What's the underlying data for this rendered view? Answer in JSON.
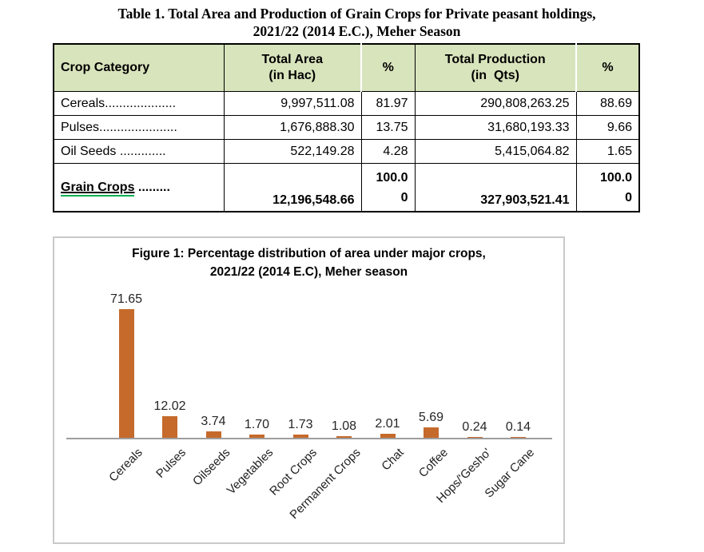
{
  "page": {
    "title_line1": "Table 1. Total Area and Production of Grain Crops for Private peasant holdings,",
    "title_line2": "2021/22 (2014 E.C.), Meher Season"
  },
  "table": {
    "headers": {
      "crop_category": "Crop Category",
      "total_area_line1": "Total Area",
      "total_area_line2": "(in Hac)",
      "area_pct": "%",
      "total_production_line1": "Total Production",
      "total_production_line2": "(in  Qts)",
      "production_pct": "%"
    },
    "rows": [
      {
        "label": "Cereals....................",
        "area": "9,997,511.08",
        "area_pct": "81.97",
        "production": "290,808,263.25",
        "production_pct": "88.69"
      },
      {
        "label": "Pulses......................",
        "area": "1,676,888.30",
        "area_pct": "13.75",
        "production": "31,680,193.33",
        "production_pct": "9.66"
      },
      {
        "label": "Oil Seeds .............",
        "area": "522,149.28",
        "area_pct": "4.28",
        "production": "5,415,064.82",
        "production_pct": "1.65"
      }
    ],
    "total_row": {
      "label": "Grain Crops",
      "label_dots": " .........",
      "area": "12,196,548.66",
      "area_pct_line1": "100.0",
      "area_pct_line2": "0",
      "production": "327,903,521.41",
      "production_pct_line1": "100.0",
      "production_pct_line2": "0"
    }
  },
  "figure": {
    "title_line1": "Figure 1: Percentage distribution of area under major crops,",
    "title_line2": "2021/22 (2014 E.C), Meher season"
  },
  "chart_data": {
    "type": "bar",
    "title": "Figure 1: Percentage distribution of area under major crops, 2021/22 (2014 E.C), Meher season",
    "categories": [
      "Cereals",
      "Pulses",
      "Oilseeds",
      "Vegetables",
      "Root Crops",
      "Permanent Crops",
      "Chat",
      "Coffee",
      "Hops/'Gesho'",
      "Sugar Cane"
    ],
    "values": [
      71.65,
      12.02,
      3.74,
      1.7,
      1.73,
      1.08,
      2.01,
      5.69,
      0.24,
      0.14
    ],
    "data_labels": [
      "71.65",
      "12.02",
      "3.74",
      "1.70",
      "1.73",
      "1.08",
      "2.01",
      "5.69",
      "0.24",
      "0.14"
    ],
    "xlabel": "",
    "ylabel": "",
    "ylim": [
      0,
      80
    ],
    "grid": false,
    "legend": false,
    "bar_color": "#C56A2B",
    "axis_color": "#9E9E9E"
  },
  "colors": {
    "table_header_green": "#D8E4BC",
    "grain_underline_green": "#00B050",
    "bar_orange": "#C56A2B",
    "axis_gray": "#9E9E9E",
    "figure_border_gray": "#C9C9C9"
  }
}
